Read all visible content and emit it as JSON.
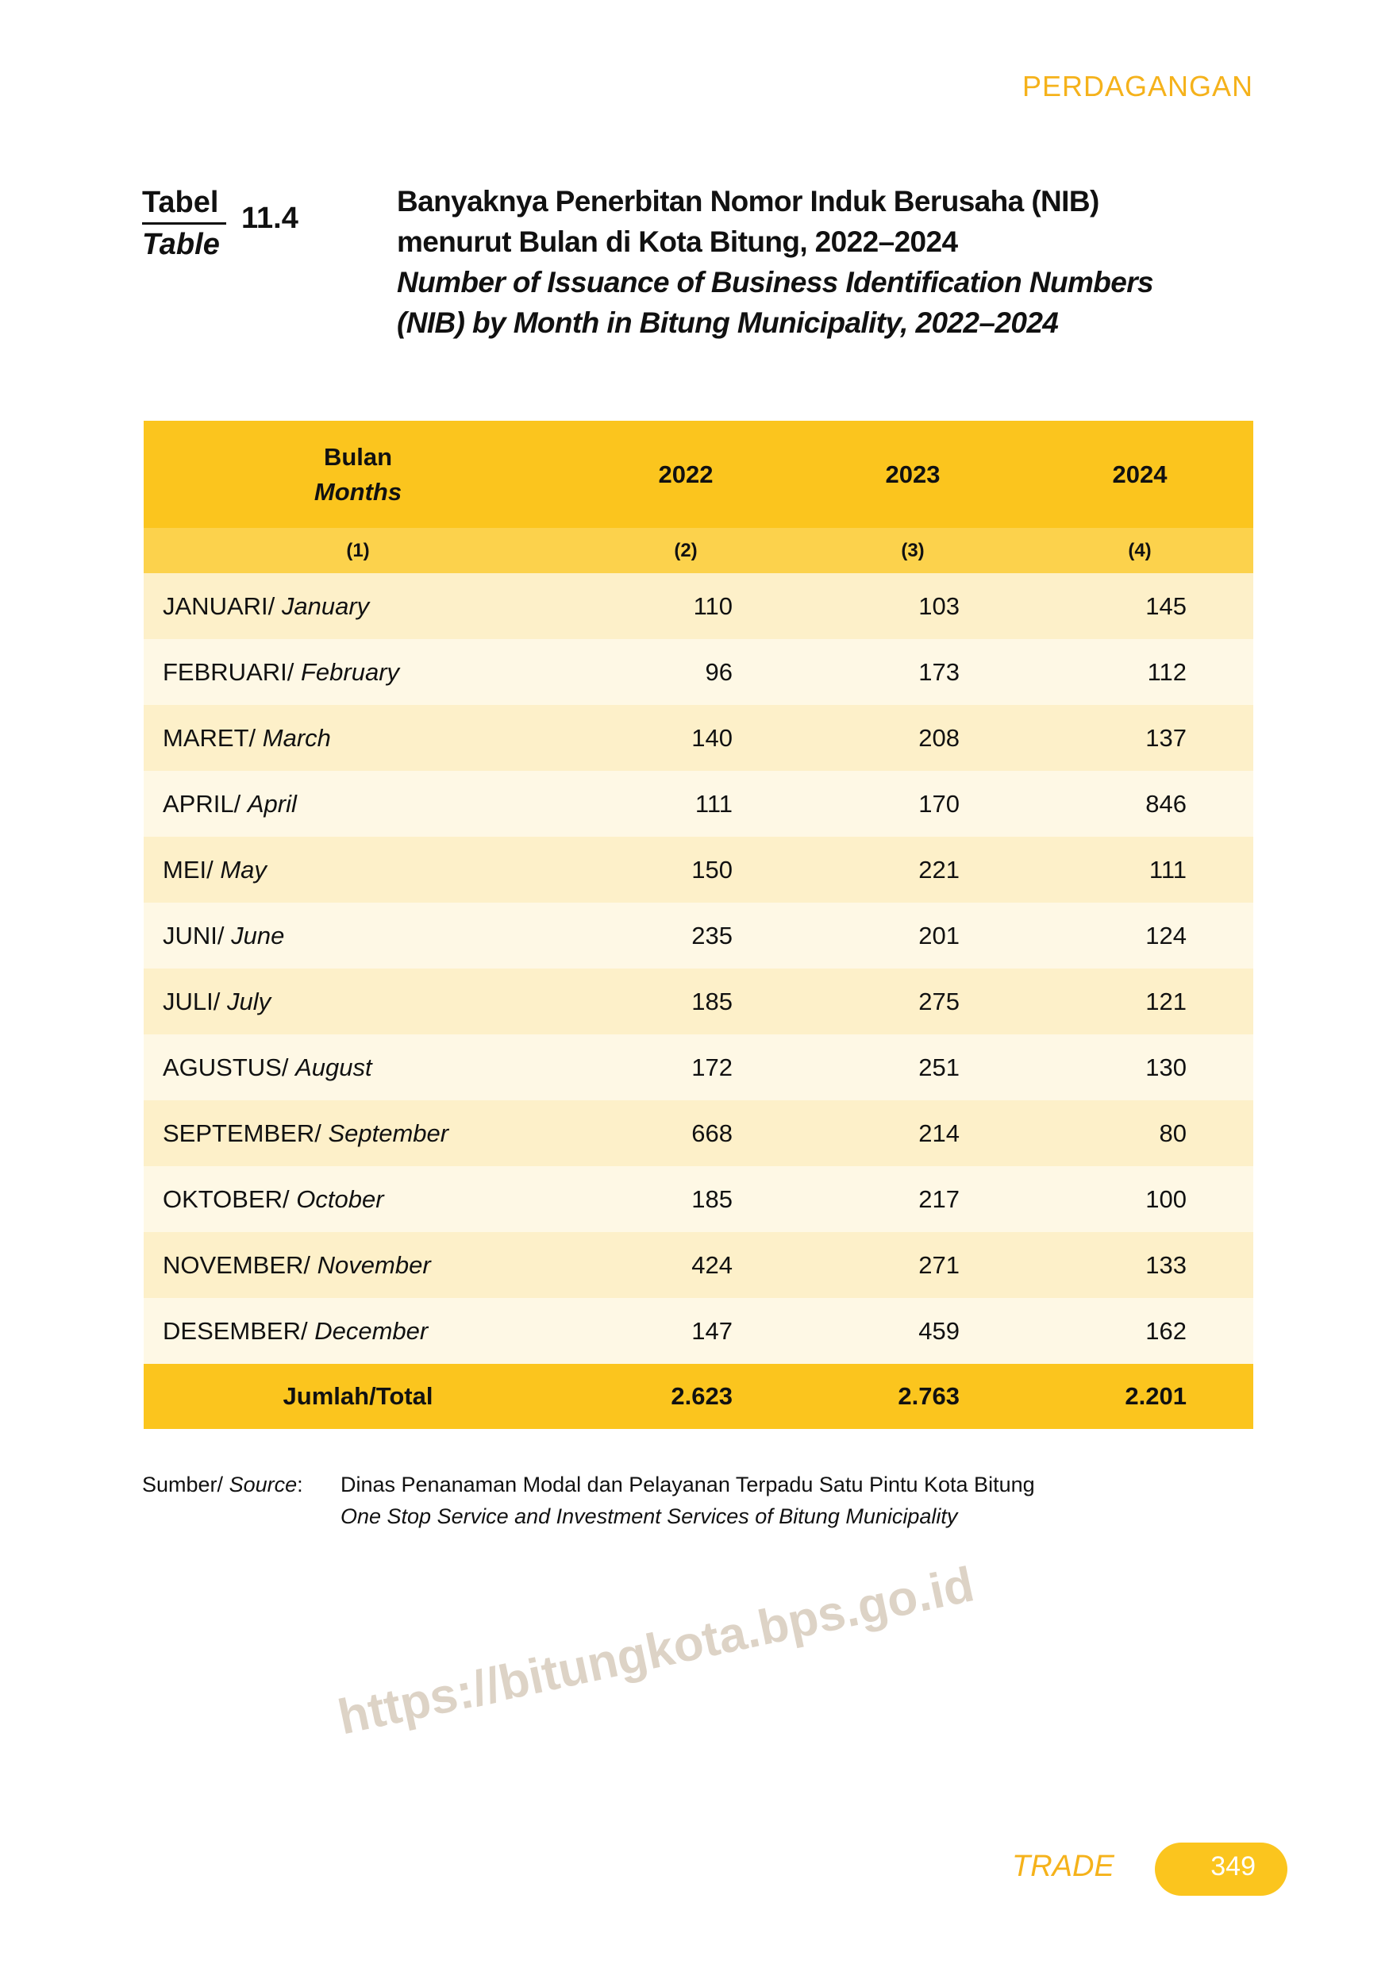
{
  "header": {
    "chapter": "PERDAGANGAN"
  },
  "table_label": {
    "id": "Tabel",
    "en": "Table",
    "number": "11.4"
  },
  "title": {
    "id_line1": "Banyaknya Penerbitan Nomor Induk Berusaha (NIB)",
    "id_line2": "menurut Bulan di Kota Bitung, 2022–2024",
    "en_line1": "Number of Issuance of Business Identification Numbers",
    "en_line2": "(NIB) by Month in Bitung Municipality, 2022–2024"
  },
  "table": {
    "col_month_id": "Bulan",
    "col_month_en": "Months",
    "years": [
      "2022",
      "2023",
      "2024"
    ],
    "col_numbers": [
      "(1)",
      "(2)",
      "(3)",
      "(4)"
    ],
    "rows": [
      {
        "id": "JANUARI/",
        "en": "January",
        "v": [
          "110",
          "103",
          "145"
        ]
      },
      {
        "id": "FEBRUARI/",
        "en": "February",
        "v": [
          "96",
          "173",
          "112"
        ]
      },
      {
        "id": "MARET/",
        "en": "March",
        "v": [
          "140",
          "208",
          "137"
        ]
      },
      {
        "id": "APRIL/",
        "en": "April",
        "v": [
          "111",
          "170",
          "846"
        ]
      },
      {
        "id": "MEI/",
        "en": "May",
        "v": [
          "150",
          "221",
          "111"
        ]
      },
      {
        "id": "JUNI/",
        "en": "June",
        "v": [
          "235",
          "201",
          "124"
        ]
      },
      {
        "id": "JULI/",
        "en": "July",
        "v": [
          "185",
          "275",
          "121"
        ]
      },
      {
        "id": "AGUSTUS/",
        "en": "August",
        "v": [
          "172",
          "251",
          "130"
        ]
      },
      {
        "id": "SEPTEMBER/",
        "en": "September",
        "v": [
          "668",
          "214",
          "80"
        ]
      },
      {
        "id": "OKTOBER/",
        "en": "October",
        "v": [
          "185",
          "217",
          "100"
        ]
      },
      {
        "id": "NOVEMBER/",
        "en": "November",
        "v": [
          "424",
          "271",
          "133"
        ]
      },
      {
        "id": "DESEMBER/",
        "en": "December",
        "v": [
          "147",
          "459",
          "162"
        ]
      }
    ],
    "total_label": "Jumlah/Total",
    "totals": [
      "2.623",
      "2.763",
      "2.201"
    ]
  },
  "source": {
    "label_id": "Sumber/",
    "label_en": "Source",
    "line1": "Dinas Penanaman Modal dan Pelayanan Terpadu Satu Pintu Kota Bitung",
    "line2": "One Stop Service and Investment Services of Bitung Municipality"
  },
  "watermark": "https://bitungkota.bps.go.id",
  "footer": {
    "section": "TRADE",
    "page": "349"
  },
  "colors": {
    "accent": "#fbc51e",
    "subheader": "#fcd24c",
    "row_odd": "#fdf0c9",
    "row_even": "#fef8e5",
    "chapter_text": "#f5b21b"
  }
}
